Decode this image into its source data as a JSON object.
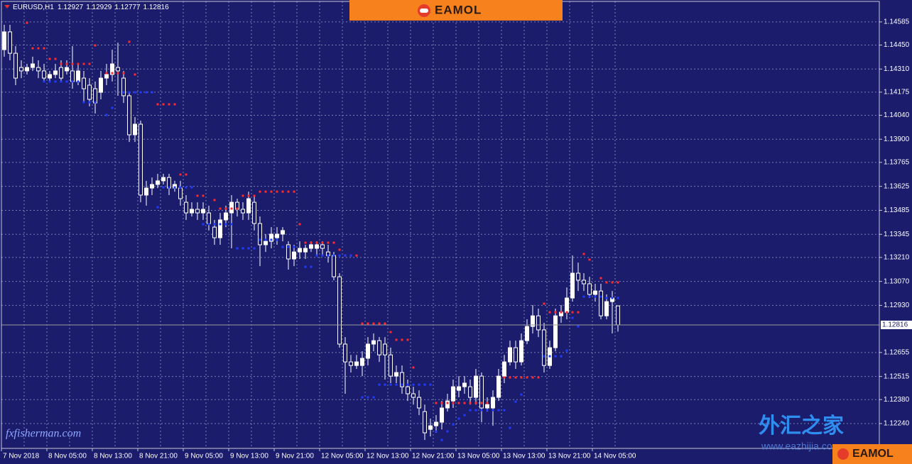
{
  "chart_data": {
    "type": "candlestick",
    "symbol": "EURUSD,H1",
    "background": "#1b1c6c",
    "up_color": "#ffffff",
    "down_color": "#1b1c6c",
    "grid": true,
    "categories": [
      "7 Nov 2018",
      null,
      null,
      null,
      null,
      null,
      null,
      null,
      "8 Nov 05:00",
      null,
      null,
      null,
      null,
      null,
      null,
      null,
      "8 Nov 13:00",
      null,
      null,
      null,
      null,
      null,
      null,
      null,
      "8 Nov 21:00",
      null,
      null,
      null,
      null,
      null,
      null,
      null,
      "9 Nov 05:00",
      null,
      null,
      null,
      null,
      null,
      null,
      null,
      "9 Nov 13:00",
      null,
      null,
      null,
      null,
      null,
      null,
      null,
      "9 Nov 21:00",
      null,
      null,
      null,
      null,
      null,
      null,
      null,
      "12 Nov 05:00",
      null,
      null,
      null,
      null,
      null,
      null,
      null,
      "12 Nov 13:00",
      null,
      null,
      null,
      null,
      null,
      null,
      null,
      "12 Nov 21:00",
      null,
      null,
      null,
      null,
      null,
      null,
      null,
      "13 Nov 05:00",
      null,
      null,
      null,
      null,
      null,
      null,
      null,
      "13 Nov 13:00",
      null,
      null,
      null,
      null,
      null,
      null,
      null,
      "13 Nov 21:00",
      null,
      null,
      null,
      null,
      null,
      null,
      null,
      "14 Nov 05:00",
      null,
      null,
      null,
      null
    ],
    "open": [
      1.14423,
      1.14527,
      1.14402,
      1.14319,
      1.14299,
      1.14319,
      1.14319,
      1.14299,
      1.14257,
      1.14278,
      1.14319,
      1.14299,
      1.14299,
      1.14237,
      1.14257,
      1.14216,
      1.14195,
      1.14174,
      1.14257,
      1.14278,
      1.14319,
      1.14257,
      1.14154,
      1.13926,
      1.13988,
      1.13574,
      1.13615,
      1.13636,
      1.13657,
      1.13677,
      1.13615,
      1.13615,
      1.13532,
      1.1347,
      1.13491,
      1.1347,
      1.1347,
      1.13387,
      1.13325,
      1.13429,
      1.1347,
      1.13532,
      1.13491,
      1.1347,
      1.13532,
      1.13408,
      1.13284,
      1.13304,
      1.13325,
      1.13346,
      1.13284,
      1.13201,
      1.13242,
      1.13242,
      1.13263,
      1.13263,
      1.13284,
      1.13242,
      1.13221,
      1.13097,
      1.12704,
      1.126,
      1.12579,
      1.12579,
      1.12621,
      1.12704,
      1.12724,
      1.12704,
      1.12641,
      1.12517,
      1.12538,
      1.12455,
      1.12414,
      1.12393,
      1.1231,
      1.12206,
      1.12227,
      1.12248,
      1.12331,
      1.12372,
      1.12434,
      1.12455,
      1.12455,
      1.12393,
      1.12517,
      1.12331,
      1.12331,
      1.12393,
      1.12517,
      1.126,
      1.12683,
      1.126,
      1.12724,
      1.12807,
      1.12869,
      1.12787,
      1.12579,
      1.12683,
      1.12869,
      1.1289,
      1.12973,
      1.13118,
      1.13077,
      1.13056,
      1.12994,
      1.13014,
      1.12869,
      1.12952,
      1.12927
    ],
    "high": [
      1.14568,
      1.14568,
      1.14444,
      1.14361,
      1.1434,
      1.14382,
      1.14361,
      1.1434,
      1.14299,
      1.1434,
      1.14361,
      1.14361,
      1.14444,
      1.1434,
      1.14299,
      1.14257,
      1.14237,
      1.14299,
      1.1434,
      1.14423,
      1.14464,
      1.14299,
      1.14174,
      1.14029,
      1.14009,
      1.13657,
      1.13677,
      1.13698,
      1.13698,
      1.13698,
      1.13657,
      1.13657,
      1.13574,
      1.13532,
      1.13532,
      1.13532,
      1.13512,
      1.13429,
      1.1347,
      1.13512,
      1.13574,
      1.13553,
      1.13532,
      1.13594,
      1.13574,
      1.13449,
      1.13346,
      1.13387,
      1.13387,
      1.13387,
      1.13304,
      1.13284,
      1.13304,
      1.13284,
      1.13304,
      1.13304,
      1.13304,
      1.13284,
      1.13242,
      1.13118,
      1.12745,
      1.12641,
      1.12641,
      1.12662,
      1.12745,
      1.12766,
      1.12745,
      1.12745,
      1.12683,
      1.12579,
      1.12579,
      1.12497,
      1.12455,
      1.12434,
      1.12351,
      1.12269,
      1.12289,
      1.12372,
      1.12414,
      1.12497,
      1.12517,
      1.12517,
      1.12497,
      1.12559,
      1.12538,
      1.12393,
      1.12434,
      1.12559,
      1.12641,
      1.12724,
      1.12724,
      1.12766,
      1.12849,
      1.12932,
      1.12911,
      1.12828,
      1.12724,
      1.12911,
      1.12932,
      1.13035,
      1.13221,
      1.1318,
      1.13118,
      1.13097,
      1.13056,
      1.13056,
      1.12994,
      1.13014,
      1.12929
    ],
    "low": [
      1.14382,
      1.14361,
      1.14216,
      1.14257,
      1.14278,
      1.14299,
      1.14257,
      1.14237,
      1.14237,
      1.14257,
      1.14237,
      1.14278,
      1.14195,
      1.14216,
      1.14112,
      1.14092,
      1.1405,
      1.14133,
      1.14216,
      1.14237,
      1.14154,
      1.14112,
      1.13884,
      1.13884,
      1.13532,
      1.13512,
      1.13574,
      1.13615,
      1.13636,
      1.13574,
      1.13594,
      1.13512,
      1.13429,
      1.13449,
      1.13429,
      1.13429,
      1.13367,
      1.13284,
      1.13284,
      1.13387,
      1.13263,
      1.13449,
      1.13429,
      1.13429,
      1.13367,
      1.13159,
      1.13242,
      1.13263,
      1.13284,
      1.13304,
      1.13139,
      1.13159,
      1.13201,
      1.13201,
      1.13242,
      1.13221,
      1.13221,
      1.1318,
      1.13077,
      1.12683,
      1.12414,
      1.12538,
      1.12559,
      1.12517,
      1.12579,
      1.12662,
      1.126,
      1.12497,
      1.12476,
      1.12476,
      1.12414,
      1.12372,
      1.12351,
      1.12289,
      1.12144,
      1.12165,
      1.12186,
      1.12206,
      1.1231,
      1.12331,
      1.12393,
      1.12414,
      1.12351,
      1.12351,
      1.12248,
      1.1231,
      1.12227,
      1.12372,
      1.12476,
      1.12579,
      1.12559,
      1.12579,
      1.12704,
      1.12766,
      1.12745,
      1.12538,
      1.12559,
      1.12662,
      1.12828,
      1.12849,
      1.12952,
      1.13014,
      1.13014,
      1.12973,
      1.12952,
      1.12849,
      1.12849,
      1.12766,
      1.12777
    ],
    "close": [
      1.14527,
      1.14402,
      1.14257,
      1.14299,
      1.14319,
      1.1434,
      1.14299,
      1.14257,
      1.14278,
      1.14299,
      1.14257,
      1.14319,
      1.14237,
      1.14299,
      1.14195,
      1.14133,
      1.14112,
      1.14257,
      1.14278,
      1.1434,
      1.14299,
      1.14154,
      1.13926,
      1.13988,
      1.13574,
      1.13615,
      1.13636,
      1.13657,
      1.13677,
      1.13615,
      1.13636,
      1.13553,
      1.1347,
      1.13491,
      1.1347,
      1.13491,
      1.13408,
      1.13325,
      1.13429,
      1.1347,
      1.13532,
      1.13491,
      1.1347,
      1.13553,
      1.13408,
      1.13284,
      1.13304,
      1.13346,
      1.13346,
      1.13367,
      1.13201,
      1.13242,
      1.13263,
      1.13263,
      1.13284,
      1.13284,
      1.13263,
      1.13221,
      1.13097,
      1.12704,
      1.126,
      1.12579,
      1.126,
      1.12621,
      1.12704,
      1.12724,
      1.12641,
      1.12641,
      1.12517,
      1.12538,
      1.12455,
      1.12414,
      1.12393,
      1.12331,
      1.12186,
      1.12227,
      1.12248,
      1.12331,
      1.12372,
      1.12455,
      1.12455,
      1.12476,
      1.12393,
      1.12517,
      1.12331,
      1.12351,
      1.12393,
      1.12517,
      1.126,
      1.12683,
      1.126,
      1.12724,
      1.12807,
      1.12869,
      1.12787,
      1.12579,
      1.12683,
      1.12869,
      1.1289,
      1.12973,
      1.13118,
      1.13077,
      1.13056,
      1.12994,
      1.13014,
      1.12869,
      1.12952,
      1.12973,
      1.12816
    ],
    "dots": [
      {
        "color": "#ff2a2a",
        "values": [
          null,
          null,
          null,
          null,
          1.1458,
          1.14431,
          1.14431,
          1.14431,
          1.14369,
          1.14369,
          1.1434,
          1.1434,
          1.1434,
          1.1434,
          1.1434,
          1.1434,
          1.14448,
          null,
          1.14286,
          1.14286,
          1.14286,
          1.14286,
          1.14469,
          1.14278,
          null,
          null,
          null,
          1.14104,
          1.14104,
          1.14104,
          1.14104,
          1.13694,
          1.13694,
          null,
          1.1357,
          1.1357,
          null,
          1.13545,
          1.13495,
          1.13495,
          1.13495,
          1.13495,
          1.1357,
          1.1357,
          1.1357,
          1.13594,
          1.13594,
          1.13594,
          1.13594,
          1.13594,
          1.13594,
          1.13594,
          1.13404,
          1.13296,
          1.13296,
          1.13296,
          1.13296,
          1.13296,
          1.13296,
          1.13255,
          1.13221,
          1.13221,
          1.13221,
          1.12824,
          1.12824,
          1.12824,
          1.12824,
          1.12824,
          1.12774,
          1.12729,
          1.12729,
          1.12729,
          1.12567,
          null,
          null,
          null,
          1.1236,
          1.1236,
          1.1236,
          1.1236,
          1.1236,
          1.1236,
          1.1236,
          1.1236,
          1.1236,
          1.1236,
          null,
          null,
          1.12509,
          1.12509,
          1.12509,
          1.12509,
          1.12509,
          1.12509,
          1.12509,
          1.1294,
          1.1289,
          1.1289,
          1.1289,
          1.1289,
          1.1289,
          1.1289,
          1.1323,
          1.13197,
          null,
          1.13089,
          1.13064,
          1.13064,
          1.13064
        ]
      },
      {
        "color": "#1f3cff",
        "values": [
          null,
          null,
          null,
          null,
          null,
          null,
          null,
          1.14237,
          1.14237,
          1.14237,
          1.14237,
          1.14237,
          1.14237,
          1.14237,
          1.14116,
          1.14116,
          1.14116,
          null,
          1.14042,
          1.14083,
          null,
          1.14174,
          1.14174,
          1.14174,
          1.14174,
          1.14174,
          1.14174,
          1.13503,
          1.13619,
          1.13619,
          1.13619,
          1.13619,
          1.13619,
          1.13619,
          null,
          1.13404,
          1.13404,
          1.13404,
          1.13404,
          1.13404,
          1.13404,
          1.13263,
          1.13263,
          1.13263,
          1.13263,
          1.13313,
          1.13313,
          1.13313,
          1.13313,
          1.13271,
          1.13271,
          1.13271,
          null,
          1.13155,
          1.13155,
          1.13221,
          1.13221,
          1.13221,
          1.13221,
          1.13221,
          1.13221,
          1.13221,
          null,
          1.12393,
          1.12393,
          1.12393,
          1.12467,
          1.12467,
          1.12467,
          1.12467,
          1.12467,
          1.12467,
          1.12467,
          1.12467,
          1.12467,
          1.12467,
          1.12194,
          1.12144,
          1.12194,
          1.12235,
          1.12269,
          1.12289,
          1.12318,
          1.12318,
          1.12318,
          1.12318,
          1.12318,
          1.12318,
          1.12318,
          1.12215,
          1.12368,
          1.12409,
          null,
          null,
          null,
          1.12633,
          1.12633,
          1.12633,
          1.12633,
          1.12666,
          1.12857,
          1.12807,
          1.12981,
          1.12981,
          1.12981,
          1.12981,
          1.12973,
          1.12973,
          1.12973
        ]
      }
    ],
    "ylim": [
      1.12095,
      1.14713
    ],
    "yticks": [
      1.14585,
      {
        "value": 1.1445,
        "label": "1.14450"
      },
      {
        "value": 1.1431,
        "label": "1.14310"
      },
      1.14175,
      {
        "value": 1.1404,
        "label": "1.14040"
      },
      {
        "value": 1.139,
        "label": "1.13900"
      },
      1.13765,
      1.13625,
      1.13485,
      1.13345,
      {
        "value": 1.1321,
        "label": "1.13210"
      },
      {
        "value": 1.1307,
        "label": "1.13070"
      },
      {
        "value": 1.1293,
        "label": "1.12930"
      },
      1.12655,
      1.12515,
      {
        "value": 1.1238,
        "label": "1.12380"
      },
      {
        "value": 1.1224,
        "label": "1.12240"
      }
    ]
  },
  "branding": {
    "banner": "EAMOL",
    "site": "fxfisherman.com",
    "cn_name": "外汇之家",
    "cn_url": "www.eazhijia.com",
    "corner": "EAMOL"
  }
}
